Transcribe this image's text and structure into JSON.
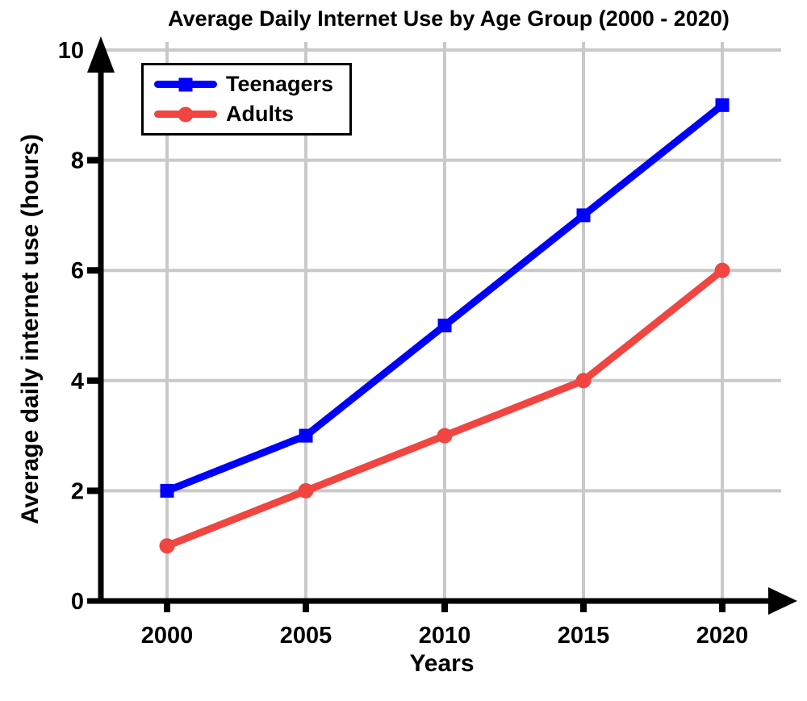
{
  "chart_data": {
    "type": "line",
    "title": "Average Daily Internet Use by Age Group (2000 - 2020)",
    "xlabel": "Years",
    "ylabel": "Average daily internet use (hours)",
    "categories": [
      "2000",
      "2005",
      "2010",
      "2015",
      "2020"
    ],
    "series": [
      {
        "name": "Teenagers",
        "values": [
          2,
          3,
          5,
          7,
          9
        ],
        "color": "#0000ff",
        "marker": "square"
      },
      {
        "name": "Adults",
        "values": [
          1,
          2,
          3,
          4,
          6
        ],
        "color": "#f04540",
        "marker": "circle"
      }
    ],
    "ylim": [
      0,
      10
    ],
    "yticks": [
      0,
      2,
      4,
      6,
      8,
      10
    ],
    "grid": true,
    "grid_color": "#c9c9c9",
    "axis_color": "#000000",
    "legend_position": "top-left"
  }
}
